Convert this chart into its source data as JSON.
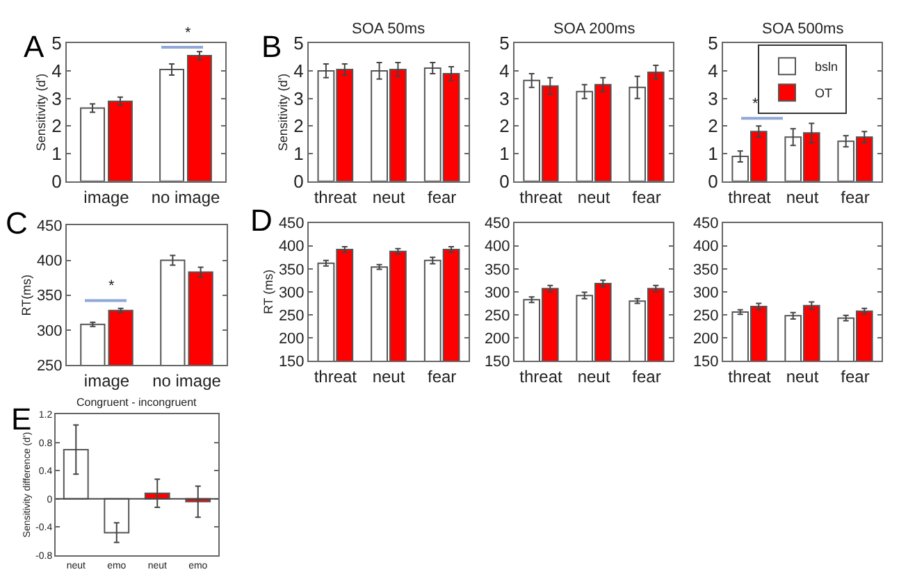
{
  "chart_data": [
    {
      "type": "bar",
      "ylabel": "Sensitivity (d')",
      "categories": [
        "image",
        "no image"
      ],
      "ylim": [
        0,
        5
      ],
      "yticks": [
        0,
        1,
        2,
        3,
        4,
        5
      ],
      "annotations": [
        "A",
        "*"
      ],
      "series": [
        {
          "color": "#ffffff",
          "values": [
            2.65,
            4.05
          ],
          "errors": [
            0.15,
            0.2
          ]
        },
        {
          "color": "#ff0000",
          "values": [
            2.9,
            4.55
          ],
          "errors": [
            0.15,
            0.15
          ]
        }
      ]
    },
    {
      "type": "bar",
      "title": "SOA 50ms",
      "ylabel": "Sensitivity (d')",
      "categories": [
        "threat",
        "neut",
        "fear"
      ],
      "ylim": [
        0,
        5
      ],
      "yticks": [
        0,
        1,
        2,
        3,
        4,
        5
      ],
      "annotations": [
        "B"
      ],
      "series": [
        {
          "color": "#ffffff",
          "values": [
            4.0,
            4.0,
            4.1
          ],
          "errors": [
            0.25,
            0.3,
            0.2
          ]
        },
        {
          "color": "#ff0000",
          "values": [
            4.05,
            4.05,
            3.9
          ],
          "errors": [
            0.2,
            0.25,
            0.25
          ]
        }
      ]
    },
    {
      "type": "bar",
      "title": "SOA 200ms",
      "categories": [
        "threat",
        "neut",
        "fear"
      ],
      "ylim": [
        0,
        5
      ],
      "yticks": [
        0,
        1,
        2,
        3,
        4,
        5
      ],
      "series": [
        {
          "color": "#ffffff",
          "values": [
            3.65,
            3.25,
            3.4
          ],
          "errors": [
            0.25,
            0.25,
            0.4
          ]
        },
        {
          "color": "#ff0000",
          "values": [
            3.45,
            3.5,
            3.95
          ],
          "errors": [
            0.3,
            0.25,
            0.25
          ]
        }
      ]
    },
    {
      "type": "bar",
      "title": "SOA 500ms",
      "categories": [
        "threat",
        "neut",
        "fear"
      ],
      "ylim": [
        0,
        5
      ],
      "yticks": [
        0,
        1,
        2,
        3,
        4,
        5
      ],
      "legend": "top",
      "annotations": [
        "*"
      ],
      "series": [
        {
          "name": "bsln",
          "color": "#ffffff",
          "values": [
            0.9,
            1.6,
            1.45
          ],
          "errors": [
            0.2,
            0.3,
            0.2
          ]
        },
        {
          "name": "OT",
          "color": "#ff0000",
          "values": [
            1.8,
            1.75,
            1.6
          ],
          "errors": [
            0.2,
            0.35,
            0.2
          ]
        }
      ]
    },
    {
      "type": "bar",
      "ylabel": "RT(ms)",
      "categories": [
        "image",
        "no image"
      ],
      "ylim": [
        250,
        450
      ],
      "yticks": [
        250,
        300,
        350,
        400,
        450
      ],
      "annotations": [
        "C",
        "*"
      ],
      "series": [
        {
          "color": "#ffffff",
          "values": [
            308,
            400
          ],
          "errors": [
            3,
            7
          ]
        },
        {
          "color": "#ff0000",
          "values": [
            328,
            383
          ],
          "errors": [
            3,
            7
          ]
        }
      ]
    },
    {
      "type": "bar",
      "ylabel": "RT (ms)",
      "categories": [
        "threat",
        "neut",
        "fear"
      ],
      "ylim": [
        150,
        450
      ],
      "yticks": [
        150,
        200,
        250,
        300,
        350,
        400,
        450
      ],
      "annotations": [
        "D"
      ],
      "series": [
        {
          "color": "#ffffff",
          "values": [
            362,
            354,
            368
          ],
          "errors": [
            6,
            5,
            7
          ]
        },
        {
          "color": "#ff0000",
          "values": [
            392,
            388,
            392
          ],
          "errors": [
            6,
            6,
            6
          ]
        }
      ]
    },
    {
      "type": "bar",
      "categories": [
        "threat",
        "neut",
        "fear"
      ],
      "ylim": [
        150,
        450
      ],
      "yticks": [
        150,
        200,
        250,
        300,
        350,
        400,
        450
      ],
      "series": [
        {
          "color": "#ffffff",
          "values": [
            283,
            292,
            280
          ],
          "errors": [
            6,
            7,
            5
          ]
        },
        {
          "color": "#ff0000",
          "values": [
            307,
            318,
            307
          ],
          "errors": [
            7,
            7,
            7
          ]
        }
      ]
    },
    {
      "type": "bar",
      "categories": [
        "threat",
        "neut",
        "fear"
      ],
      "ylim": [
        150,
        450
      ],
      "yticks": [
        150,
        200,
        250,
        300,
        350,
        400,
        450
      ],
      "series": [
        {
          "color": "#ffffff",
          "values": [
            256,
            248,
            243
          ],
          "errors": [
            5,
            7,
            6
          ]
        },
        {
          "color": "#ff0000",
          "values": [
            268,
            270,
            258
          ],
          "errors": [
            7,
            8,
            6
          ]
        }
      ]
    },
    {
      "type": "bar",
      "title": "Congruent - incongruent",
      "ylabel": "Sensitivity difference (d')",
      "categories": [
        "neut",
        "emo",
        "neut",
        "emo"
      ],
      "ylim": [
        -0.8,
        1.2
      ],
      "yticks": [
        -0.8,
        -0.4,
        0,
        0.4,
        0.8,
        1.2
      ],
      "ref_lines": [
        {
          "axis": "y",
          "value": 0
        }
      ],
      "annotations": [
        "E"
      ],
      "colors": [
        "#ffffff",
        "#ffffff",
        "#ff0000",
        "#ff0000"
      ],
      "values": [
        0.7,
        -0.48,
        0.08,
        -0.04
      ],
      "errors": [
        0.35,
        0.14,
        0.2,
        0.22
      ]
    }
  ]
}
